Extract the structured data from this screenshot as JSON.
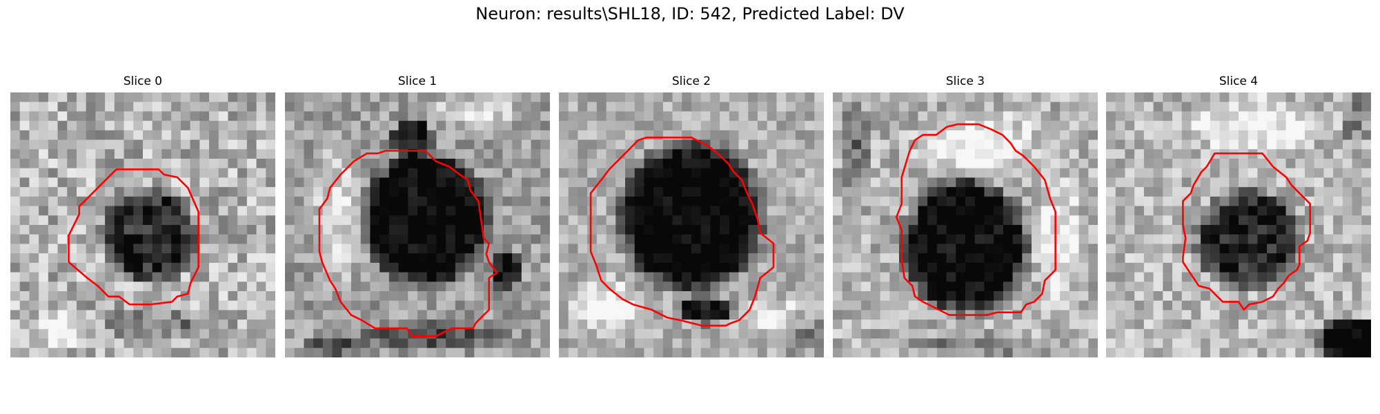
{
  "figure": {
    "title": "Neuron: results\\SHL18, ID: 542, Predicted Label: DV"
  },
  "panels": [
    {
      "label": "Slice 0"
    },
    {
      "label": "Slice 1"
    },
    {
      "label": "Slice 2"
    },
    {
      "label": "Slice 3"
    },
    {
      "label": "Slice 4"
    }
  ],
  "colors": {
    "contour": "#ff0000",
    "background": "#ffffff"
  }
}
